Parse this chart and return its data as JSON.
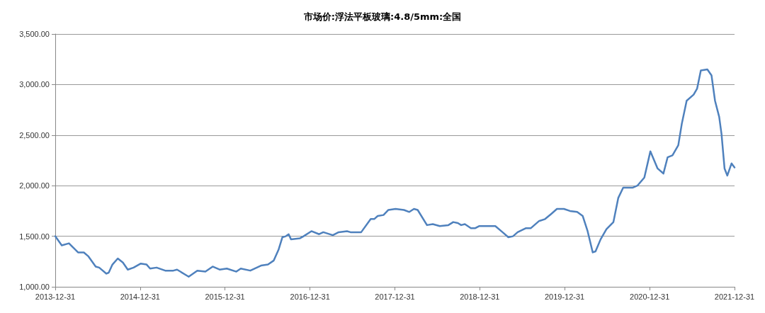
{
  "chart_data": {
    "type": "line",
    "title": "市场价:浮法平板玻璃:4.8/5mm:全国",
    "x": [
      "2013-12-31",
      "2014-01-28",
      "2014-02-28",
      "2014-04-08",
      "2014-05-03",
      "2014-05-23",
      "2014-06-23",
      "2014-07-08",
      "2014-08-08",
      "2014-08-18",
      "2014-09-03",
      "2014-09-26",
      "2014-10-18",
      "2014-11-08",
      "2014-12-03",
      "2015-01-03",
      "2015-01-28",
      "2015-02-12",
      "2015-03-12",
      "2015-04-18",
      "2015-05-23",
      "2015-06-08",
      "2015-07-28",
      "2015-09-03",
      "2015-10-08",
      "2015-11-08",
      "2015-12-08",
      "2016-01-08",
      "2016-02-18",
      "2016-03-08",
      "2016-04-18",
      "2016-06-03",
      "2016-07-03",
      "2016-07-28",
      "2016-08-18",
      "2016-09-03",
      "2016-09-18",
      "2016-09-30",
      "2016-10-10",
      "2016-11-18",
      "2016-12-03",
      "2017-01-06",
      "2017-02-08",
      "2017-02-26",
      "2017-04-08",
      "2017-05-03",
      "2017-06-08",
      "2017-06-23",
      "2017-08-08",
      "2017-09-18",
      "2017-10-03",
      "2017-10-18",
      "2017-11-12",
      "2017-12-03",
      "2018-01-03",
      "2018-02-08",
      "2018-03-03",
      "2018-03-23",
      "2018-04-08",
      "2018-05-18",
      "2018-06-12",
      "2018-07-12",
      "2018-08-18",
      "2018-09-08",
      "2018-09-28",
      "2018-10-12",
      "2018-10-28",
      "2018-11-23",
      "2018-12-12",
      "2018-12-28",
      "2019-03-08",
      "2019-04-08",
      "2019-05-03",
      "2019-05-23",
      "2019-06-12",
      "2019-07-18",
      "2019-08-08",
      "2019-09-12",
      "2019-10-08",
      "2019-11-03",
      "2019-11-28",
      "2019-12-28",
      "2020-01-23",
      "2020-02-23",
      "2020-03-18",
      "2020-04-08",
      "2020-04-30",
      "2020-05-12",
      "2020-06-03",
      "2020-06-28",
      "2020-07-28",
      "2020-08-18",
      "2020-09-08",
      "2020-10-18",
      "2020-11-08",
      "2020-12-08",
      "2021-01-03",
      "2021-02-03",
      "2021-02-28",
      "2021-03-18",
      "2021-04-08",
      "2021-05-03",
      "2021-05-18",
      "2021-06-08",
      "2021-07-08",
      "2021-07-23",
      "2021-08-08",
      "2021-09-05",
      "2021-09-23",
      "2021-10-08",
      "2021-10-26",
      "2021-11-05",
      "2021-11-18",
      "2021-11-30",
      "2021-12-18",
      "2021-12-31"
    ],
    "series": [
      {
        "color": "#4f81bd",
        "values": [
          1500,
          1410,
          1430,
          1340,
          1340,
          1300,
          1200,
          1190,
          1130,
          1140,
          1220,
          1280,
          1240,
          1170,
          1190,
          1230,
          1220,
          1180,
          1190,
          1160,
          1160,
          1170,
          1100,
          1160,
          1150,
          1200,
          1170,
          1180,
          1150,
          1180,
          1160,
          1210,
          1220,
          1260,
          1370,
          1490,
          1500,
          1520,
          1470,
          1480,
          1500,
          1550,
          1520,
          1540,
          1510,
          1540,
          1550,
          1540,
          1540,
          1670,
          1670,
          1700,
          1710,
          1760,
          1770,
          1760,
          1740,
          1770,
          1760,
          1610,
          1620,
          1600,
          1610,
          1640,
          1630,
          1610,
          1620,
          1580,
          1580,
          1600,
          1600,
          1540,
          1490,
          1500,
          1540,
          1580,
          1580,
          1650,
          1670,
          1720,
          1770,
          1770,
          1750,
          1740,
          1700,
          1550,
          1340,
          1350,
          1470,
          1570,
          1640,
          1880,
          1980,
          1980,
          2000,
          2080,
          2340,
          2170,
          2120,
          2280,
          2300,
          2400,
          2610,
          2840,
          2900,
          2960,
          3140,
          3150,
          3090,
          2840,
          2680,
          2510,
          2170,
          2100,
          2220,
          2180
        ]
      }
    ],
    "xlim": [
      "2013-12-31",
      "2021-12-31"
    ],
    "xticks": [
      "2013-12-31",
      "2014-12-31",
      "2015-12-31",
      "2016-12-31",
      "2017-12-31",
      "2018-12-31",
      "2019-12-31",
      "2020-12-31",
      "2021-12-31"
    ],
    "ylim": [
      1000,
      3500
    ],
    "yticks": [
      {
        "value": 1000,
        "label": "1,000.00"
      },
      {
        "value": 1500,
        "label": "1,500.00"
      },
      {
        "value": 2000,
        "label": "2,000.00"
      },
      {
        "value": 2500,
        "label": "2,500.00"
      },
      {
        "value": 3000,
        "label": "3,000.00"
      },
      {
        "value": 3500,
        "label": "3,500.00"
      }
    ],
    "grid": "y",
    "marker": "none",
    "line_style": "solid"
  }
}
